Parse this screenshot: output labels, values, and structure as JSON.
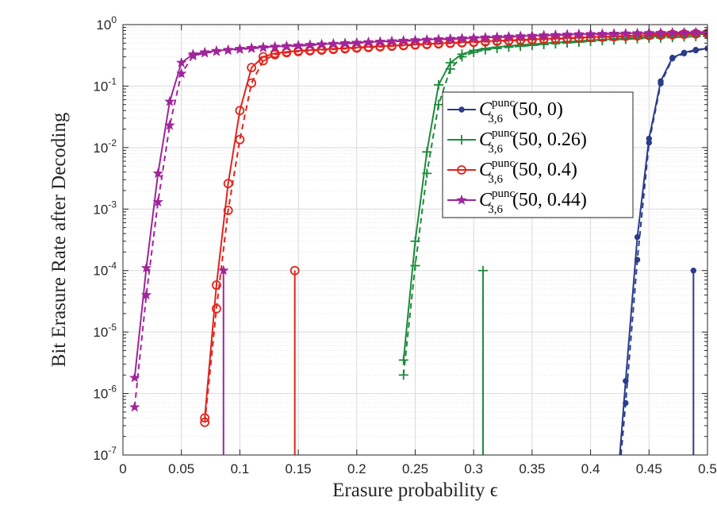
{
  "chart_data": {
    "type": "line",
    "title": "",
    "xlabel": "Erasure probability ϵ",
    "ylabel": "Bit Erasure Rate after Decoding",
    "x_scale": "linear",
    "y_scale": "log",
    "xlim": [
      0,
      0.5
    ],
    "ylim": [
      1e-07,
      1
    ],
    "grid": "on (major and minor)",
    "legend_position": "right-center",
    "x_ticks": [
      "0",
      "0.05",
      "0.1",
      "0.15",
      "0.2",
      "0.25",
      "0.3",
      "0.35",
      "0.4",
      "0.45",
      "0.5"
    ],
    "y_ticks": [
      {
        "base": "10",
        "exp": "-7"
      },
      {
        "base": "10",
        "exp": "-6"
      },
      {
        "base": "10",
        "exp": "-5"
      },
      {
        "base": "10",
        "exp": "-4"
      },
      {
        "base": "10",
        "exp": "-3"
      },
      {
        "base": "10",
        "exp": "-2"
      },
      {
        "base": "10",
        "exp": "-1"
      },
      {
        "base": "10",
        "exp": "0"
      }
    ],
    "series": [
      {
        "name": "C_{3,6}^{punc}(50, 0)",
        "legend": {
          "symbol": "C",
          "sub": "3,6",
          "sup": "punc",
          "args": "(50, 0)"
        },
        "color": "#2b3c8a",
        "marker": "dot",
        "solid": {
          "x": [
            0.425,
            0.43,
            0.44,
            0.45,
            0.46,
            0.47,
            0.48,
            0.49,
            0.5
          ],
          "y": [
            1e-07,
            1.6e-06,
            0.00035,
            0.014,
            0.12,
            0.29,
            0.35,
            0.39,
            0.41
          ]
        },
        "dashed": {
          "x": [
            0.426,
            0.43,
            0.44,
            0.45,
            0.46,
            0.47,
            0.48,
            0.49,
            0.5
          ],
          "y": [
            1e-07,
            7e-07,
            0.00015,
            0.012,
            0.11,
            0.28,
            0.34,
            0.38,
            0.41
          ]
        },
        "threshold_x": 0.488
      },
      {
        "name": "C_{3,6}^{punc}(50, 0.26)",
        "legend": {
          "symbol": "C",
          "sub": "3,6",
          "sup": "punc",
          "args": "(50, 0.26)"
        },
        "color": "#1e8a3c",
        "marker": "plus",
        "solid": {
          "x": [
            0.24,
            0.25,
            0.26,
            0.27,
            0.28,
            0.29,
            0.3,
            0.31,
            0.32,
            0.33,
            0.34,
            0.35,
            0.36,
            0.37,
            0.38,
            0.39,
            0.4,
            0.41,
            0.42,
            0.43,
            0.44,
            0.45,
            0.46,
            0.47,
            0.48,
            0.49,
            0.5
          ],
          "y": [
            3.5e-06,
            0.0003,
            0.0085,
            0.105,
            0.24,
            0.33,
            0.38,
            0.41,
            0.43,
            0.45,
            0.465,
            0.48,
            0.495,
            0.51,
            0.525,
            0.54,
            0.555,
            0.57,
            0.585,
            0.6,
            0.615,
            0.63,
            0.645,
            0.66,
            0.675,
            0.69,
            0.705
          ]
        },
        "dashed": {
          "x": [
            0.24,
            0.25,
            0.26,
            0.27,
            0.28,
            0.29,
            0.3,
            0.31,
            0.32,
            0.33,
            0.34,
            0.35,
            0.36,
            0.37,
            0.38,
            0.39,
            0.4,
            0.41,
            0.42,
            0.43,
            0.44,
            0.45,
            0.46,
            0.47,
            0.48,
            0.49,
            0.5
          ],
          "y": [
            2e-06,
            0.00012,
            0.0038,
            0.05,
            0.19,
            0.3,
            0.355,
            0.39,
            0.41,
            0.43,
            0.445,
            0.46,
            0.475,
            0.49,
            0.505,
            0.52,
            0.535,
            0.55,
            0.565,
            0.58,
            0.59,
            0.6,
            0.61,
            0.62,
            0.63,
            0.64,
            0.65
          ]
        },
        "threshold_x": 0.308
      },
      {
        "name": "C_{3,6}^{punc}(50, 0.4)",
        "legend": {
          "symbol": "C",
          "sub": "3,6",
          "sup": "punc",
          "args": "(50, 0.4)"
        },
        "color": "#e2231a",
        "marker": "circle",
        "solid": {
          "x": [
            0.07,
            0.08,
            0.09,
            0.1,
            0.11,
            0.12,
            0.13,
            0.14,
            0.15,
            0.16,
            0.17,
            0.18,
            0.19,
            0.2,
            0.21,
            0.22,
            0.23,
            0.24,
            0.25,
            0.26,
            0.27,
            0.28,
            0.29,
            0.3,
            0.31,
            0.32,
            0.33,
            0.34,
            0.35,
            0.36,
            0.37,
            0.38,
            0.39,
            0.4,
            0.41,
            0.42,
            0.43,
            0.44,
            0.45,
            0.46,
            0.47,
            0.48,
            0.49,
            0.5
          ],
          "y": [
            4e-07,
            5.8e-05,
            0.0026,
            0.04,
            0.2,
            0.3,
            0.34,
            0.36,
            0.375,
            0.385,
            0.395,
            0.405,
            0.415,
            0.425,
            0.435,
            0.445,
            0.455,
            0.465,
            0.475,
            0.485,
            0.495,
            0.505,
            0.515,
            0.525,
            0.535,
            0.545,
            0.555,
            0.565,
            0.575,
            0.585,
            0.595,
            0.605,
            0.615,
            0.625,
            0.635,
            0.645,
            0.655,
            0.665,
            0.675,
            0.685,
            0.695,
            0.705,
            0.715,
            0.725
          ]
        },
        "dashed": {
          "x": [
            0.07,
            0.08,
            0.09,
            0.1,
            0.11,
            0.12,
            0.13,
            0.14,
            0.15,
            0.16,
            0.17,
            0.18,
            0.19,
            0.2,
            0.21,
            0.22,
            0.23,
            0.24,
            0.25,
            0.26,
            0.27,
            0.28,
            0.29,
            0.3,
            0.31,
            0.32,
            0.33,
            0.34,
            0.35,
            0.36,
            0.37,
            0.38,
            0.39,
            0.4,
            0.41,
            0.42,
            0.43,
            0.44,
            0.45,
            0.46,
            0.47,
            0.48,
            0.49,
            0.5
          ],
          "y": [
            3.4e-07,
            2.4e-05,
            0.00095,
            0.0135,
            0.112,
            0.26,
            0.325,
            0.35,
            0.365,
            0.375,
            0.385,
            0.395,
            0.405,
            0.415,
            0.425,
            0.435,
            0.445,
            0.455,
            0.465,
            0.475,
            0.485,
            0.495,
            0.505,
            0.515,
            0.525,
            0.535,
            0.545,
            0.555,
            0.565,
            0.575,
            0.585,
            0.595,
            0.605,
            0.615,
            0.625,
            0.635,
            0.645,
            0.655,
            0.665,
            0.675,
            0.685,
            0.695,
            0.705,
            0.715
          ]
        },
        "threshold_x": 0.147
      },
      {
        "name": "C_{3,6}^{punc}(50, 0.44)",
        "legend": {
          "symbol": "C",
          "sub": "3,6",
          "sup": "punc",
          "args": "(50, 0.44)"
        },
        "color": "#a0259a",
        "marker": "star",
        "solid": {
          "x": [
            0.01,
            0.02,
            0.03,
            0.04,
            0.05,
            0.06,
            0.07,
            0.08,
            0.09,
            0.1,
            0.11,
            0.12,
            0.13,
            0.14,
            0.15,
            0.16,
            0.17,
            0.18,
            0.19,
            0.2,
            0.21,
            0.22,
            0.23,
            0.24,
            0.25,
            0.26,
            0.27,
            0.28,
            0.29,
            0.3,
            0.31,
            0.32,
            0.33,
            0.34,
            0.35,
            0.36,
            0.37,
            0.38,
            0.39,
            0.4,
            0.41,
            0.42,
            0.43,
            0.44,
            0.45,
            0.46,
            0.47,
            0.48,
            0.49,
            0.5
          ],
          "y": [
            1.8e-06,
            0.00011,
            0.0038,
            0.056,
            0.24,
            0.33,
            0.355,
            0.375,
            0.39,
            0.405,
            0.42,
            0.43,
            0.44,
            0.45,
            0.46,
            0.47,
            0.48,
            0.49,
            0.5,
            0.51,
            0.52,
            0.53,
            0.54,
            0.55,
            0.56,
            0.57,
            0.58,
            0.59,
            0.6,
            0.61,
            0.62,
            0.63,
            0.64,
            0.65,
            0.66,
            0.67,
            0.68,
            0.69,
            0.7,
            0.705,
            0.71,
            0.715,
            0.72,
            0.725,
            0.73,
            0.735,
            0.74,
            0.745,
            0.75,
            0.755
          ]
        },
        "dashed": {
          "x": [
            0.01,
            0.02,
            0.03,
            0.04,
            0.05,
            0.06,
            0.07,
            0.08,
            0.09,
            0.1,
            0.11,
            0.12,
            0.13,
            0.14,
            0.15,
            0.16,
            0.17,
            0.18,
            0.19,
            0.2,
            0.21,
            0.22,
            0.23,
            0.24,
            0.25,
            0.26,
            0.27,
            0.28,
            0.29,
            0.3,
            0.31,
            0.32,
            0.33,
            0.34,
            0.35,
            0.36,
            0.37,
            0.38,
            0.39,
            0.4,
            0.41,
            0.42,
            0.43,
            0.44,
            0.45,
            0.46,
            0.47,
            0.48,
            0.49,
            0.5
          ],
          "y": [
            6e-07,
            4e-05,
            0.0013,
            0.023,
            0.16,
            0.31,
            0.345,
            0.365,
            0.38,
            0.395,
            0.41,
            0.42,
            0.43,
            0.44,
            0.45,
            0.46,
            0.47,
            0.48,
            0.49,
            0.5,
            0.51,
            0.52,
            0.53,
            0.54,
            0.55,
            0.56,
            0.57,
            0.58,
            0.59,
            0.6,
            0.61,
            0.62,
            0.63,
            0.64,
            0.65,
            0.66,
            0.67,
            0.68,
            0.69,
            0.695,
            0.7,
            0.705,
            0.71,
            0.715,
            0.72,
            0.725,
            0.73,
            0.735,
            0.74,
            0.745
          ]
        },
        "threshold_x": 0.086
      }
    ]
  }
}
